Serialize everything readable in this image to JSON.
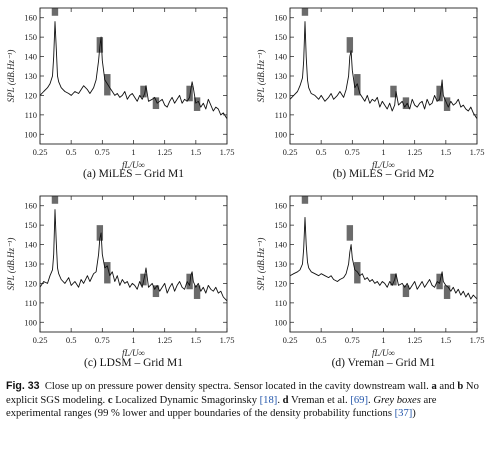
{
  "chart_data": [
    {
      "type": "line",
      "panel_caption": "(a) MiLES – Grid M1",
      "xlabel": "fL/U∞",
      "ylabel": "SPL (dB.Hz⁻¹)",
      "xlim": [
        0.25,
        1.75
      ],
      "ylim": [
        95,
        165
      ],
      "x_ticks": [
        "0.25",
        "0.5",
        "0.75",
        "1",
        "1.25",
        "1.5",
        "1.75"
      ],
      "y_ticks": [
        "100",
        "110",
        "120",
        "130",
        "140",
        "150",
        "160"
      ],
      "series": [
        {
          "x": [
            0.25,
            0.28,
            0.31,
            0.33,
            0.35,
            0.36,
            0.37,
            0.38,
            0.39,
            0.4,
            0.42,
            0.45,
            0.48,
            0.5,
            0.53,
            0.56,
            0.58,
            0.6,
            0.63,
            0.65,
            0.68,
            0.7,
            0.72,
            0.73,
            0.74,
            0.75,
            0.77,
            0.79,
            0.81,
            0.83,
            0.85,
            0.87,
            0.89,
            0.91,
            0.93,
            0.95,
            0.97,
            0.99,
            1.01,
            1.03,
            1.05,
            1.07,
            1.09,
            1.1,
            1.12,
            1.15,
            1.17,
            1.19,
            1.21,
            1.23,
            1.25,
            1.27,
            1.29,
            1.31,
            1.33,
            1.35,
            1.37,
            1.39,
            1.41,
            1.43,
            1.45,
            1.46,
            1.47,
            1.48,
            1.5,
            1.52,
            1.54,
            1.56,
            1.58,
            1.6,
            1.62,
            1.64,
            1.66,
            1.68,
            1.7,
            1.72,
            1.75
          ],
          "y": [
            120,
            122,
            124,
            126,
            130,
            140,
            158,
            145,
            130,
            127,
            124,
            122,
            121,
            120,
            122,
            121,
            123,
            125,
            123,
            121,
            124,
            128,
            138,
            145,
            150,
            138,
            128,
            126,
            124,
            122,
            120,
            121,
            119,
            120,
            122,
            118,
            120,
            121,
            119,
            117,
            120,
            118,
            121,
            125,
            117,
            118,
            119,
            116,
            117,
            118,
            115,
            114,
            117,
            119,
            116,
            118,
            120,
            116,
            118,
            117,
            119,
            123,
            127,
            124,
            116,
            117,
            114,
            116,
            113,
            118,
            115,
            112,
            114,
            113,
            110,
            111,
            108
          ]
        }
      ],
      "ranges": [
        {
          "x": 0.37,
          "low": 161,
          "high": 166
        },
        {
          "x": 0.73,
          "low": 142,
          "high": 150
        },
        {
          "x": 0.79,
          "low": 120,
          "high": 131
        },
        {
          "x": 1.08,
          "low": 119,
          "high": 125
        },
        {
          "x": 1.18,
          "low": 113,
          "high": 119
        },
        {
          "x": 1.45,
          "low": 117,
          "high": 125
        },
        {
          "x": 1.51,
          "low": 112,
          "high": 119
        }
      ]
    },
    {
      "type": "line",
      "panel_caption": "(b) MiLES – Grid M2",
      "xlabel": "fL/U∞",
      "ylabel": "SPL (dB.Hz⁻¹)",
      "xlim": [
        0.25,
        1.75
      ],
      "ylim": [
        95,
        165
      ],
      "x_ticks": [
        "0.25",
        "0.5",
        "0.75",
        "1",
        "1.25",
        "1.5",
        "1.75"
      ],
      "y_ticks": [
        "100",
        "110",
        "120",
        "130",
        "140",
        "150",
        "160"
      ],
      "series": [
        {
          "x": [
            0.25,
            0.28,
            0.31,
            0.33,
            0.35,
            0.36,
            0.37,
            0.38,
            0.39,
            0.4,
            0.42,
            0.45,
            0.48,
            0.5,
            0.53,
            0.56,
            0.58,
            0.6,
            0.63,
            0.65,
            0.68,
            0.7,
            0.72,
            0.73,
            0.74,
            0.75,
            0.77,
            0.79,
            0.81,
            0.83,
            0.85,
            0.87,
            0.89,
            0.91,
            0.93,
            0.95,
            0.97,
            0.99,
            1.01,
            1.03,
            1.05,
            1.07,
            1.09,
            1.1,
            1.12,
            1.15,
            1.17,
            1.19,
            1.21,
            1.23,
            1.25,
            1.27,
            1.29,
            1.31,
            1.33,
            1.35,
            1.37,
            1.39,
            1.41,
            1.43,
            1.45,
            1.46,
            1.47,
            1.48,
            1.5,
            1.52,
            1.54,
            1.56,
            1.58,
            1.6,
            1.62,
            1.64,
            1.66,
            1.68,
            1.7,
            1.72,
            1.75
          ],
          "y": [
            118,
            120,
            122,
            125,
            129,
            138,
            158,
            140,
            128,
            124,
            121,
            120,
            118,
            120,
            117,
            119,
            121,
            118,
            120,
            122,
            119,
            123,
            130,
            140,
            143,
            133,
            124,
            126,
            121,
            119,
            117,
            120,
            116,
            118,
            117,
            119,
            114,
            117,
            115,
            113,
            116,
            112,
            115,
            122,
            115,
            117,
            114,
            116,
            113,
            118,
            115,
            114,
            116,
            117,
            113,
            118,
            115,
            116,
            120,
            117,
            118,
            122,
            128,
            120,
            117,
            114,
            117,
            115,
            116,
            118,
            114,
            115,
            113,
            112,
            114,
            111,
            108
          ]
        }
      ],
      "ranges": [
        {
          "x": 0.37,
          "low": 161,
          "high": 166
        },
        {
          "x": 0.73,
          "low": 142,
          "high": 150
        },
        {
          "x": 0.79,
          "low": 120,
          "high": 131
        },
        {
          "x": 1.08,
          "low": 119,
          "high": 125
        },
        {
          "x": 1.18,
          "low": 113,
          "high": 119
        },
        {
          "x": 1.45,
          "low": 117,
          "high": 125
        },
        {
          "x": 1.51,
          "low": 112,
          "high": 119
        }
      ]
    },
    {
      "type": "line",
      "panel_caption": "(c) LDSM – Grid M1",
      "xlabel": "fL/U∞",
      "ylabel": "SPL (dB.Hz⁻¹)",
      "xlim": [
        0.25,
        1.75
      ],
      "ylim": [
        95,
        165
      ],
      "x_ticks": [
        "0.25",
        "0.5",
        "0.75",
        "1",
        "1.25",
        "1.5",
        "1.75"
      ],
      "y_ticks": [
        "100",
        "110",
        "120",
        "130",
        "140",
        "150",
        "160"
      ],
      "series": [
        {
          "x": [
            0.25,
            0.28,
            0.31,
            0.33,
            0.35,
            0.36,
            0.37,
            0.38,
            0.39,
            0.4,
            0.42,
            0.45,
            0.48,
            0.5,
            0.53,
            0.56,
            0.58,
            0.6,
            0.63,
            0.65,
            0.68,
            0.7,
            0.72,
            0.73,
            0.74,
            0.75,
            0.77,
            0.79,
            0.81,
            0.83,
            0.85,
            0.87,
            0.89,
            0.91,
            0.93,
            0.95,
            0.97,
            0.99,
            1.01,
            1.03,
            1.05,
            1.07,
            1.09,
            1.1,
            1.12,
            1.15,
            1.17,
            1.19,
            1.21,
            1.23,
            1.25,
            1.27,
            1.29,
            1.31,
            1.33,
            1.35,
            1.37,
            1.39,
            1.41,
            1.43,
            1.45,
            1.46,
            1.47,
            1.48,
            1.5,
            1.52,
            1.54,
            1.56,
            1.58,
            1.6,
            1.62,
            1.64,
            1.66,
            1.68,
            1.7,
            1.72,
            1.75
          ],
          "y": [
            118,
            121,
            120,
            124,
            127,
            135,
            158,
            142,
            128,
            125,
            122,
            120,
            123,
            119,
            121,
            118,
            122,
            120,
            124,
            121,
            125,
            126,
            135,
            143,
            146,
            135,
            128,
            129,
            124,
            126,
            121,
            124,
            119,
            122,
            120,
            121,
            118,
            120,
            119,
            117,
            121,
            118,
            124,
            128,
            118,
            120,
            117,
            119,
            116,
            118,
            120,
            115,
            118,
            120,
            116,
            119,
            121,
            118,
            117,
            121,
            119,
            124,
            126,
            121,
            118,
            120,
            116,
            118,
            115,
            119,
            117,
            116,
            118,
            115,
            116,
            113,
            111
          ]
        }
      ],
      "ranges": [
        {
          "x": 0.37,
          "low": 161,
          "high": 166
        },
        {
          "x": 0.73,
          "low": 142,
          "high": 150
        },
        {
          "x": 0.79,
          "low": 120,
          "high": 131
        },
        {
          "x": 1.08,
          "low": 119,
          "high": 125
        },
        {
          "x": 1.18,
          "low": 113,
          "high": 119
        },
        {
          "x": 1.45,
          "low": 117,
          "high": 125
        },
        {
          "x": 1.51,
          "low": 112,
          "high": 119
        }
      ]
    },
    {
      "type": "line",
      "panel_caption": "(d) Vreman – Grid M1",
      "xlabel": "fL/U∞",
      "ylabel": "SPL (dB.Hz⁻¹)",
      "xlim": [
        0.25,
        1.75
      ],
      "ylim": [
        95,
        165
      ],
      "x_ticks": [
        "0.25",
        "0.5",
        "0.75",
        "1",
        "1.25",
        "1.5",
        "1.75"
      ],
      "y_ticks": [
        "100",
        "110",
        "120",
        "130",
        "140",
        "150",
        "160"
      ],
      "series": [
        {
          "x": [
            0.25,
            0.28,
            0.31,
            0.33,
            0.35,
            0.36,
            0.37,
            0.38,
            0.39,
            0.4,
            0.42,
            0.45,
            0.48,
            0.5,
            0.53,
            0.56,
            0.58,
            0.6,
            0.63,
            0.65,
            0.68,
            0.7,
            0.72,
            0.73,
            0.74,
            0.75,
            0.77,
            0.79,
            0.81,
            0.83,
            0.85,
            0.87,
            0.89,
            0.91,
            0.93,
            0.95,
            0.97,
            0.99,
            1.01,
            1.03,
            1.05,
            1.07,
            1.09,
            1.1,
            1.12,
            1.15,
            1.17,
            1.19,
            1.21,
            1.23,
            1.25,
            1.27,
            1.29,
            1.31,
            1.33,
            1.35,
            1.37,
            1.39,
            1.41,
            1.43,
            1.45,
            1.46,
            1.47,
            1.48,
            1.5,
            1.52,
            1.54,
            1.56,
            1.58,
            1.6,
            1.62,
            1.64,
            1.66,
            1.68,
            1.7,
            1.72,
            1.75
          ],
          "y": [
            124,
            125,
            126,
            127,
            130,
            138,
            154,
            140,
            131,
            128,
            126,
            125,
            124,
            125,
            124,
            123,
            124,
            122,
            121,
            122,
            123,
            125,
            130,
            136,
            140,
            133,
            127,
            126,
            124,
            125,
            122,
            123,
            121,
            122,
            120,
            121,
            119,
            121,
            120,
            118,
            121,
            119,
            122,
            125,
            119,
            120,
            118,
            120,
            117,
            119,
            121,
            117,
            119,
            121,
            118,
            120,
            122,
            119,
            118,
            121,
            120,
            123,
            126,
            121,
            119,
            118,
            116,
            118,
            115,
            117,
            114,
            116,
            113,
            115,
            112,
            114,
            112
          ]
        }
      ],
      "ranges": [
        {
          "x": 0.37,
          "low": 161,
          "high": 166
        },
        {
          "x": 0.73,
          "low": 142,
          "high": 150
        },
        {
          "x": 0.79,
          "low": 120,
          "high": 131
        },
        {
          "x": 1.08,
          "low": 119,
          "high": 125
        },
        {
          "x": 1.18,
          "low": 113,
          "high": 119
        },
        {
          "x": 1.45,
          "low": 117,
          "high": 125
        },
        {
          "x": 1.51,
          "low": 112,
          "high": 119
        }
      ]
    }
  ],
  "caption": {
    "fig_label": "Fig. 33",
    "lead": "Close up on pressure power density spectra. Sensor located in the cavity downstream wall.",
    "mark_ab": "a",
    "and": "and",
    "mark_b": "b",
    "part_b": "No explicit SGS modeling.",
    "mark_c": "c",
    "part_c": "Localized Dynamic Smagorinsky",
    "ref_c": "[18]",
    "mark_d": "d",
    "part_d": "Vreman et al.",
    "ref_d": "[69]",
    "grey_boxes": "Grey boxes",
    "rest": "are experimental ranges (99 % lower and upper boundaries of the density probability functions",
    "ref_end": "[37]",
    "close": ")"
  }
}
